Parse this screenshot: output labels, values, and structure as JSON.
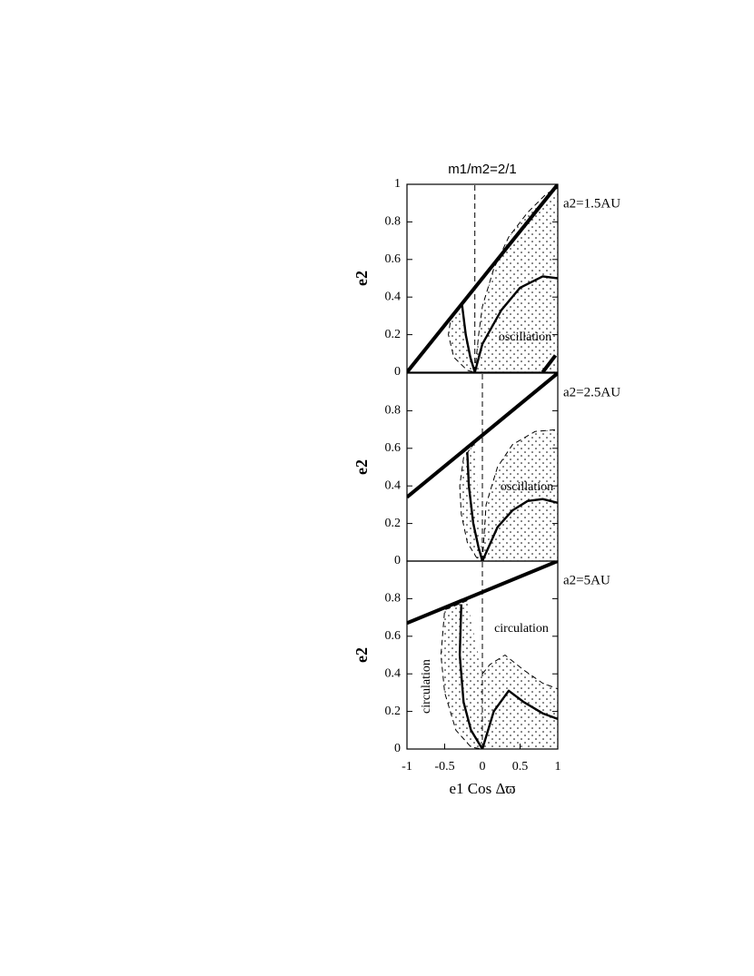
{
  "chart_data": [
    {
      "type": "line",
      "title": "m1/m2=2/1",
      "label": "a2=1.5AU",
      "y_label": "e2",
      "annotations": [
        "oscillation"
      ],
      "xlim": [
        -1,
        1
      ],
      "ylim": [
        0,
        1
      ],
      "yticks": [
        0,
        0.2,
        0.4,
        0.6,
        0.8,
        1
      ],
      "series": [
        {
          "style": "thick",
          "x": [
            -1,
            1
          ],
          "values": [
            0,
            1
          ]
        },
        {
          "style": "thick",
          "x": [
            0.8,
            0.97
          ],
          "values": [
            0,
            0.09
          ]
        },
        {
          "style": "dashed",
          "x": [
            -0.32,
            -0.42,
            -0.45,
            -0.38,
            -0.2,
            -0.1
          ],
          "values": [
            0.35,
            0.28,
            0.2,
            0.08,
            0.01,
            0
          ]
        },
        {
          "style": "dashed",
          "x": [
            -0.1,
            -0.05,
            0,
            0.15,
            0.35,
            0.6,
            0.85,
            1
          ],
          "values": [
            0,
            0.2,
            0.35,
            0.55,
            0.72,
            0.85,
            0.95,
            0.98
          ]
        },
        {
          "style": "solid",
          "x": [
            -0.27,
            -0.22,
            -0.16,
            -0.1
          ],
          "values": [
            0.36,
            0.2,
            0.08,
            0
          ]
        },
        {
          "style": "solid",
          "x": [
            -0.1,
            0,
            0.25,
            0.5,
            0.8,
            1
          ],
          "values": [
            0,
            0.15,
            0.33,
            0.45,
            0.51,
            0.5
          ]
        },
        {
          "style": "dashed",
          "x": [
            -0.1,
            -0.1
          ],
          "values": [
            0,
            1
          ]
        }
      ]
    },
    {
      "type": "line",
      "label": "a2=2.5AU",
      "y_label": "e2",
      "annotations": [
        "oscillation"
      ],
      "xlim": [
        -1,
        1
      ],
      "ylim": [
        0,
        1
      ],
      "yticks": [
        0,
        0.2,
        0.4,
        0.6,
        0.8
      ],
      "series": [
        {
          "style": "thick",
          "x": [
            -1,
            1
          ],
          "values": [
            0.34,
            1
          ]
        },
        {
          "style": "dashed",
          "x": [
            -0.1,
            -0.25,
            -0.3,
            -0.28,
            -0.2,
            -0.08,
            0
          ],
          "values": [
            0.63,
            0.55,
            0.4,
            0.25,
            0.1,
            0.02,
            0
          ]
        },
        {
          "style": "dashed",
          "x": [
            0,
            0.05,
            0.2,
            0.4,
            0.7,
            1
          ],
          "values": [
            0,
            0.3,
            0.5,
            0.62,
            0.69,
            0.7
          ]
        },
        {
          "style": "solid",
          "x": [
            -0.2,
            -0.18,
            -0.12,
            -0.05,
            0
          ],
          "values": [
            0.58,
            0.4,
            0.2,
            0.07,
            0
          ]
        },
        {
          "style": "solid",
          "x": [
            0,
            0.2,
            0.4,
            0.6,
            0.8,
            1
          ],
          "values": [
            0,
            0.18,
            0.27,
            0.32,
            0.33,
            0.31
          ]
        },
        {
          "style": "dashed",
          "x": [
            0,
            0
          ],
          "values": [
            0,
            1
          ]
        }
      ]
    },
    {
      "type": "line",
      "label": "a2=5AU",
      "y_label": "e2",
      "x_label": "e1 Cos Δϖ",
      "annotations": [
        "circulation",
        "circulation"
      ],
      "xlim": [
        -1,
        1
      ],
      "ylim": [
        0,
        1
      ],
      "yticks": [
        0,
        0.2,
        0.4,
        0.6,
        0.8
      ],
      "xticks": [
        -1,
        -0.5,
        0,
        0.5,
        1
      ],
      "series": [
        {
          "style": "thick",
          "x": [
            -1,
            1
          ],
          "values": [
            0.67,
            1
          ]
        },
        {
          "style": "dashed",
          "x": [
            -0.2,
            -0.5,
            -0.55,
            -0.5,
            -0.35,
            -0.15,
            0
          ],
          "values": [
            0.79,
            0.74,
            0.5,
            0.3,
            0.1,
            0.01,
            0
          ]
        },
        {
          "style": "dashed",
          "x": [
            0,
            0.1,
            0.3,
            0.55,
            0.8,
            1
          ],
          "values": [
            0.4,
            0.45,
            0.5,
            0.42,
            0.35,
            0.32
          ]
        },
        {
          "style": "solid",
          "x": [
            -0.28,
            -0.3,
            -0.25,
            -0.15,
            0
          ],
          "values": [
            0.77,
            0.5,
            0.25,
            0.1,
            0
          ]
        },
        {
          "style": "solid",
          "x": [
            0,
            0.15,
            0.35,
            0.55,
            0.8,
            1
          ],
          "values": [
            0,
            0.2,
            0.31,
            0.25,
            0.19,
            0.16
          ]
        },
        {
          "style": "dashed",
          "x": [
            0,
            0
          ],
          "values": [
            0,
            1
          ]
        }
      ]
    }
  ]
}
